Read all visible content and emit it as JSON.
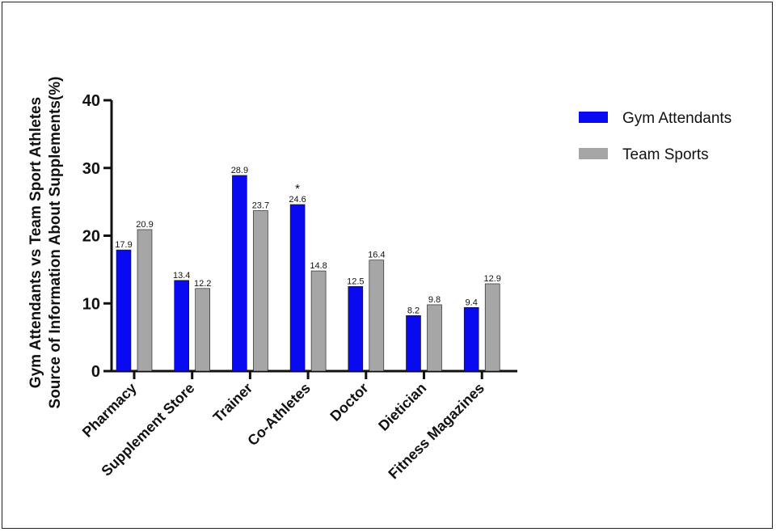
{
  "chart_data": {
    "type": "bar",
    "title": "",
    "xlabel": "",
    "ylabel_lines": [
      "Gym Attendants vs Team Sport Athletes",
      "Source of Information About Supplements(%)"
    ],
    "categories": [
      "Pharmacy",
      "Supplement Store",
      "Trainer",
      "Co-Athletes",
      "Doctor",
      "Dietician",
      "Fitness Magazines"
    ],
    "series": [
      {
        "name": "Gym Attendants",
        "color": "#0a0af0",
        "values": [
          17.9,
          13.4,
          28.9,
          24.6,
          12.5,
          8.2,
          9.4
        ]
      },
      {
        "name": "Team Sports",
        "color": "#a6a6a6",
        "values": [
          20.9,
          12.2,
          23.7,
          14.8,
          16.4,
          9.8,
          12.9
        ]
      }
    ],
    "ylim": [
      0,
      40
    ],
    "yticks": [
      0,
      10,
      20,
      30,
      40
    ],
    "grid": false,
    "legend_position": "right",
    "annotations": [
      {
        "text": "*",
        "category": "Co-Athletes",
        "series": "Gym Attendants"
      }
    ]
  }
}
